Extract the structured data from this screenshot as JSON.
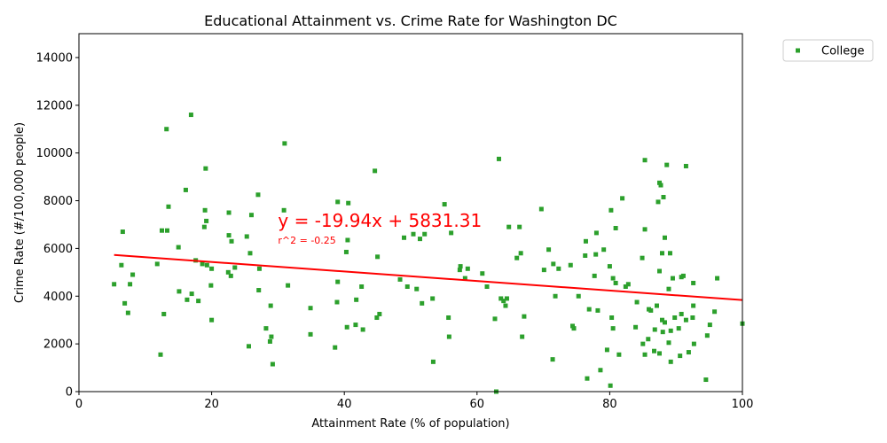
{
  "chart_data": {
    "type": "scatter",
    "title": "Educational Attainment vs. Crime Rate for Washington DC",
    "xlabel": "Attainment Rate (% of population)",
    "ylabel": "Crime Rate (#/100,000 people)",
    "xlim": [
      0,
      100
    ],
    "ylim": [
      0,
      15000
    ],
    "xticks": [
      0,
      20,
      40,
      60,
      80,
      100
    ],
    "yticks": [
      0,
      2000,
      4000,
      6000,
      8000,
      10000,
      12000,
      14000
    ],
    "grid": false,
    "legend_position": "outside-top-right",
    "colors": {
      "points": "#2ca02c",
      "fit_line": "#ff0000",
      "annotation": "#ff0000"
    },
    "series": [
      {
        "name": "College",
        "points": [
          [
            5.3,
            4500
          ],
          [
            6.4,
            5300
          ],
          [
            6.6,
            6700
          ],
          [
            6.9,
            3700
          ],
          [
            7.4,
            3300
          ],
          [
            7.7,
            4500
          ],
          [
            8.1,
            4900
          ],
          [
            11.8,
            5350
          ],
          [
            12.3,
            1550
          ],
          [
            12.5,
            6750
          ],
          [
            12.8,
            3250
          ],
          [
            13.2,
            11000
          ],
          [
            13.3,
            6750
          ],
          [
            13.5,
            7750
          ],
          [
            15.0,
            6050
          ],
          [
            15.1,
            4200
          ],
          [
            16.1,
            8450
          ],
          [
            16.3,
            3850
          ],
          [
            16.9,
            11600
          ],
          [
            17.0,
            4100
          ],
          [
            17.6,
            5500
          ],
          [
            18.0,
            3800
          ],
          [
            18.6,
            5350
          ],
          [
            18.9,
            6900
          ],
          [
            19.0,
            7600
          ],
          [
            19.1,
            9350
          ],
          [
            19.2,
            7150
          ],
          [
            19.3,
            5300
          ],
          [
            19.9,
            4450
          ],
          [
            20.0,
            5150
          ],
          [
            20.0,
            3000
          ],
          [
            22.5,
            5000
          ],
          [
            22.6,
            7500
          ],
          [
            22.6,
            6550
          ],
          [
            22.9,
            4850
          ],
          [
            23.0,
            6300
          ],
          [
            23.5,
            5200
          ],
          [
            25.3,
            6500
          ],
          [
            25.6,
            1900
          ],
          [
            25.8,
            5800
          ],
          [
            26.0,
            7400
          ],
          [
            27.0,
            8250
          ],
          [
            27.1,
            4250
          ],
          [
            27.2,
            5150
          ],
          [
            28.2,
            2650
          ],
          [
            28.8,
            2100
          ],
          [
            28.9,
            3600
          ],
          [
            29.0,
            2300
          ],
          [
            29.2,
            1150
          ],
          [
            30.9,
            7600
          ],
          [
            31.0,
            10400
          ],
          [
            31.5,
            4450
          ],
          [
            34.9,
            3500
          ],
          [
            34.9,
            2400
          ],
          [
            38.6,
            1850
          ],
          [
            38.9,
            3750
          ],
          [
            39.0,
            7950
          ],
          [
            39.0,
            4600
          ],
          [
            40.3,
            5850
          ],
          [
            40.4,
            2700
          ],
          [
            40.5,
            6350
          ],
          [
            40.6,
            7900
          ],
          [
            41.7,
            2800
          ],
          [
            41.8,
            3850
          ],
          [
            42.6,
            4400
          ],
          [
            42.8,
            2600
          ],
          [
            44.6,
            9250
          ],
          [
            44.9,
            3100
          ],
          [
            45.0,
            5650
          ],
          [
            45.3,
            3250
          ],
          [
            48.4,
            4700
          ],
          [
            49.0,
            6450
          ],
          [
            49.5,
            4400
          ],
          [
            50.4,
            6600
          ],
          [
            50.9,
            4300
          ],
          [
            51.4,
            6400
          ],
          [
            51.7,
            3700
          ],
          [
            52.1,
            6600
          ],
          [
            53.3,
            3900
          ],
          [
            53.4,
            1250
          ],
          [
            55.1,
            7850
          ],
          [
            55.7,
            3100
          ],
          [
            55.8,
            2300
          ],
          [
            56.1,
            6650
          ],
          [
            57.4,
            5100
          ],
          [
            57.5,
            5250
          ],
          [
            58.2,
            4750
          ],
          [
            58.6,
            5150
          ],
          [
            60.8,
            4950
          ],
          [
            61.5,
            4400
          ],
          [
            62.7,
            3050
          ],
          [
            62.9,
            0
          ],
          [
            63.3,
            9750
          ],
          [
            63.6,
            3900
          ],
          [
            64.0,
            3800
          ],
          [
            64.3,
            3600
          ],
          [
            64.5,
            3900
          ],
          [
            64.8,
            6900
          ],
          [
            66.0,
            5600
          ],
          [
            66.4,
            6900
          ],
          [
            66.6,
            5800
          ],
          [
            66.8,
            2300
          ],
          [
            67.1,
            3150
          ],
          [
            69.7,
            7650
          ],
          [
            70.1,
            5100
          ],
          [
            70.8,
            5950
          ],
          [
            71.4,
            1350
          ],
          [
            71.5,
            5350
          ],
          [
            71.8,
            4000
          ],
          [
            72.3,
            5150
          ],
          [
            74.1,
            5300
          ],
          [
            74.4,
            2750
          ],
          [
            74.6,
            2650
          ],
          [
            75.3,
            4000
          ],
          [
            76.3,
            5700
          ],
          [
            76.4,
            6300
          ],
          [
            76.6,
            550
          ],
          [
            76.9,
            3450
          ],
          [
            77.7,
            4850
          ],
          [
            77.9,
            5750
          ],
          [
            78.0,
            6650
          ],
          [
            78.2,
            3400
          ],
          [
            78.6,
            900
          ],
          [
            79.1,
            5950
          ],
          [
            79.6,
            1750
          ],
          [
            80.0,
            5250
          ],
          [
            80.1,
            250
          ],
          [
            80.2,
            7600
          ],
          [
            80.3,
            3100
          ],
          [
            80.5,
            2650
          ],
          [
            80.5,
            4750
          ],
          [
            80.9,
            4550
          ],
          [
            80.9,
            6850
          ],
          [
            81.4,
            1550
          ],
          [
            81.9,
            8100
          ],
          [
            82.4,
            4400
          ],
          [
            82.8,
            4500
          ],
          [
            83.9,
            2700
          ],
          [
            84.1,
            3750
          ],
          [
            84.9,
            5600
          ],
          [
            85.0,
            2000
          ],
          [
            85.3,
            1550
          ],
          [
            85.3,
            9700
          ],
          [
            85.3,
            6800
          ],
          [
            85.8,
            2200
          ],
          [
            85.9,
            3450
          ],
          [
            86.2,
            3400
          ],
          [
            86.7,
            1700
          ],
          [
            86.8,
            2600
          ],
          [
            87.1,
            3600
          ],
          [
            87.3,
            7950
          ],
          [
            87.5,
            8750
          ],
          [
            87.5,
            1600
          ],
          [
            87.5,
            5050
          ],
          [
            87.7,
            8650
          ],
          [
            87.9,
            5800
          ],
          [
            87.9,
            3000
          ],
          [
            88.0,
            2500
          ],
          [
            88.1,
            8150
          ],
          [
            88.3,
            2900
          ],
          [
            88.3,
            6450
          ],
          [
            88.6,
            9500
          ],
          [
            88.9,
            4300
          ],
          [
            88.9,
            2050
          ],
          [
            89.1,
            5800
          ],
          [
            89.2,
            1250
          ],
          [
            89.2,
            2550
          ],
          [
            89.5,
            4750
          ],
          [
            89.8,
            3100
          ],
          [
            90.4,
            2650
          ],
          [
            90.6,
            1500
          ],
          [
            90.8,
            4800
          ],
          [
            90.8,
            3250
          ],
          [
            91.1,
            4850
          ],
          [
            91.5,
            3000
          ],
          [
            91.5,
            9450
          ],
          [
            91.9,
            1650
          ],
          [
            92.5,
            3100
          ],
          [
            92.6,
            3600
          ],
          [
            92.6,
            4550
          ],
          [
            92.7,
            2000
          ],
          [
            94.5,
            500
          ],
          [
            94.7,
            2350
          ],
          [
            95.1,
            2800
          ],
          [
            95.8,
            3350
          ],
          [
            96.2,
            4750
          ],
          [
            100.0,
            2850
          ]
        ]
      }
    ],
    "fit": {
      "slope": -19.94,
      "intercept": 5831.31,
      "x_range": [
        5.3,
        100
      ],
      "equation_label": "y = -19.94x + 5831.31",
      "r2_label": "r^2 = -0.25",
      "equation_anchor": [
        30,
        6900
      ],
      "r2_anchor": [
        30,
        6200
      ]
    }
  }
}
